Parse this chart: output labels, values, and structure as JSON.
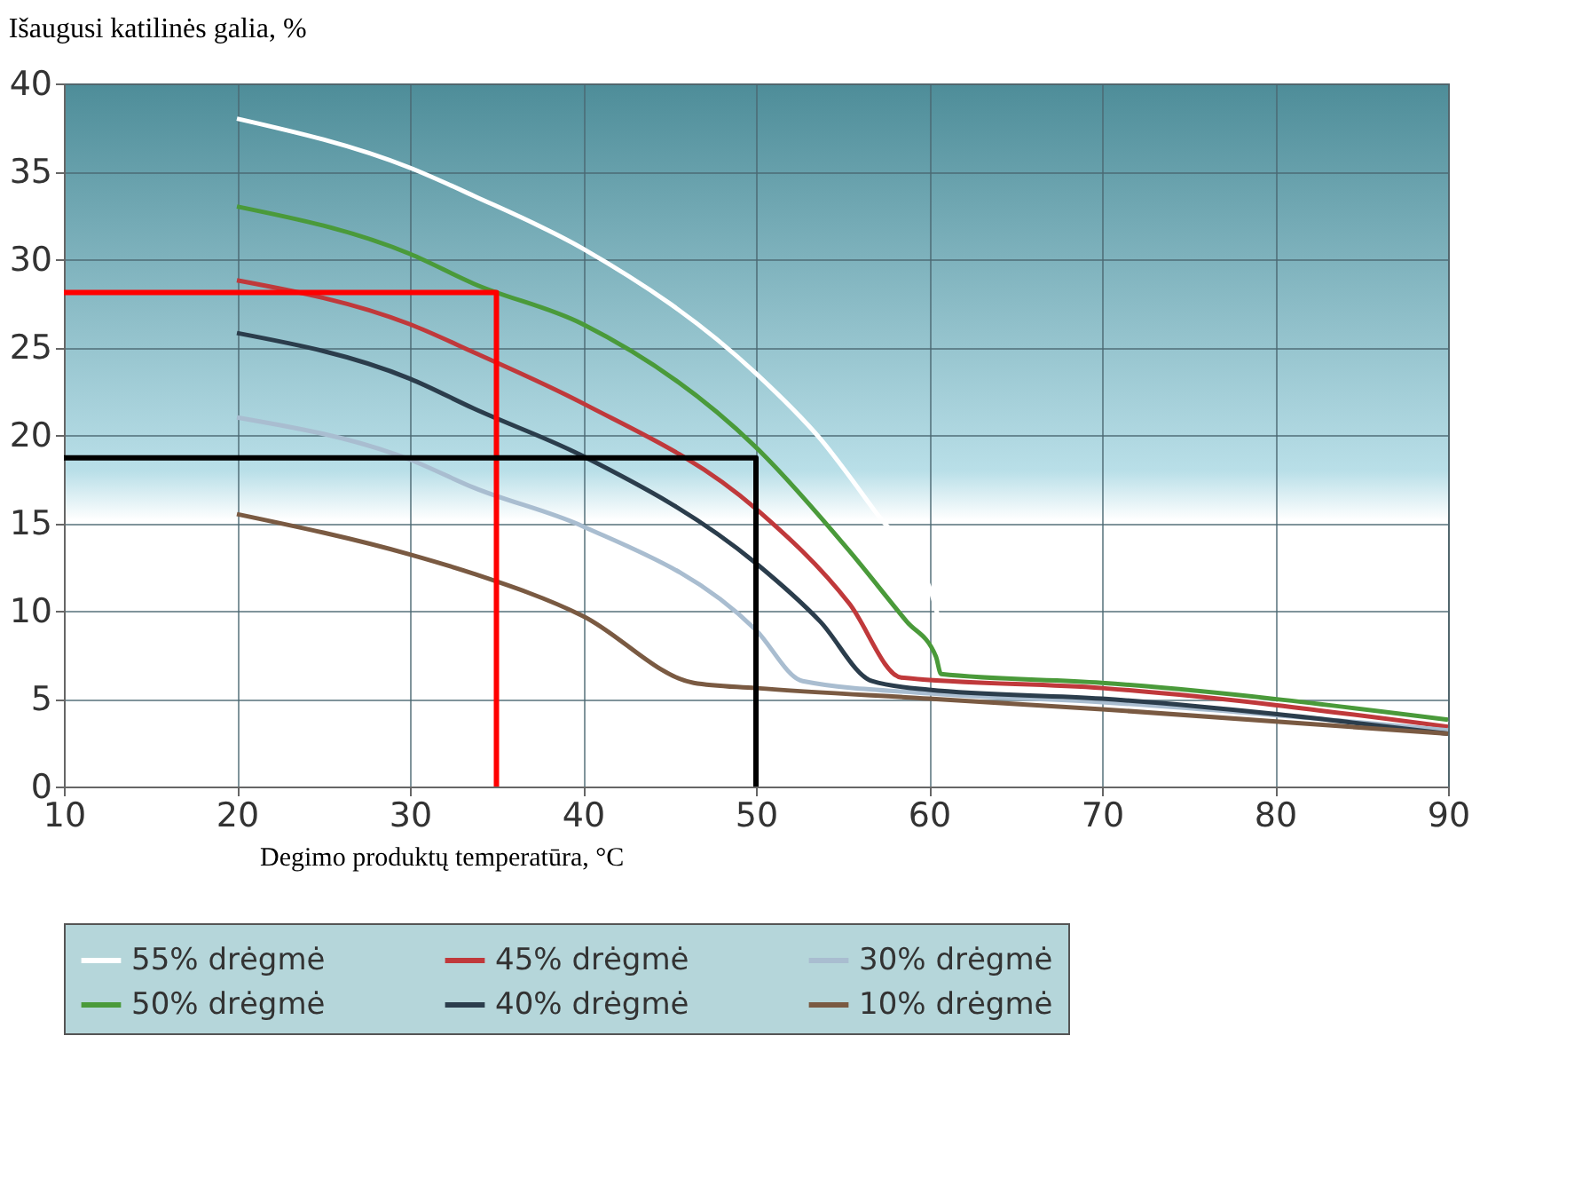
{
  "chart_data": {
    "type": "line",
    "title": "Išaugusi katilinės galia, %",
    "xlabel": "Degimo produktų temperatūra, °C",
    "xlim": [
      10,
      90
    ],
    "xticks": [
      10,
      20,
      30,
      40,
      50,
      60,
      70,
      80,
      90
    ],
    "ylim": [
      0,
      40
    ],
    "yticks": [
      0,
      5,
      10,
      15,
      20,
      25,
      30,
      35,
      40
    ],
    "grid": true,
    "legend": "bottom",
    "series": [
      {
        "name": "55% drėgmė",
        "color": "#ffffff",
        "x": [
          20,
          30,
          33.7,
          40,
          50,
          53.7,
          57,
          60,
          61.5,
          70,
          90
        ],
        "values": [
          38,
          35.2,
          33.6,
          30.6,
          23.5,
          19.8,
          15.5,
          11.4,
          7,
          5.9,
          3.6
        ]
      },
      {
        "name": "45% drėgmė",
        "color": "#c0393b",
        "x": [
          20,
          30,
          33.7,
          40,
          50,
          55.4,
          58.4,
          70,
          90
        ],
        "values": [
          28.8,
          26.3,
          24.7,
          21.8,
          15.8,
          10.4,
          6.2,
          5.6,
          3.4
        ]
      },
      {
        "name": "30% drėgmė",
        "color": "#a9bdd0",
        "x": [
          20,
          30,
          33.7,
          40,
          50,
          52.7,
          60,
          70,
          90
        ],
        "values": [
          21,
          18.6,
          17,
          14.8,
          8.9,
          6,
          5.3,
          4.8,
          3.2
        ]
      },
      {
        "name": "50% drėgmė",
        "color": "#4a9a3a",
        "x": [
          20,
          30,
          33.7,
          40,
          50,
          55.4,
          58.7,
          60.4,
          60.7,
          70,
          90
        ],
        "values": [
          33,
          30.3,
          28.6,
          26.3,
          19.3,
          13.4,
          9.4,
          7.4,
          6.4,
          5.9,
          3.8
        ]
      },
      {
        "name": "40% drėgmė",
        "color": "#2b3d4c",
        "x": [
          20,
          30,
          33.7,
          40,
          50,
          53.7,
          56.7,
          60,
          70,
          90
        ],
        "values": [
          25.8,
          23.2,
          21.5,
          18.8,
          12.7,
          9.4,
          6,
          5.5,
          5,
          3
        ]
      },
      {
        "name": "10% drėgmė",
        "color": "#7a5a42",
        "x": [
          20,
          30,
          33.7,
          40,
          46.4,
          50,
          60,
          70,
          90
        ],
        "values": [
          15.5,
          13.2,
          12.1,
          9.7,
          5.9,
          5.6,
          5,
          4.4,
          3
        ]
      },
      {
        "type": "line",
        "color": "#ff0000",
        "x": [
          10,
          35,
          35
        ],
        "values": [
          28.1,
          28.1,
          0
        ]
      },
      {
        "type": "line",
        "color": "#000000",
        "x": [
          10,
          50,
          50
        ],
        "values": [
          18.7,
          18.7,
          0
        ]
      }
    ]
  }
}
